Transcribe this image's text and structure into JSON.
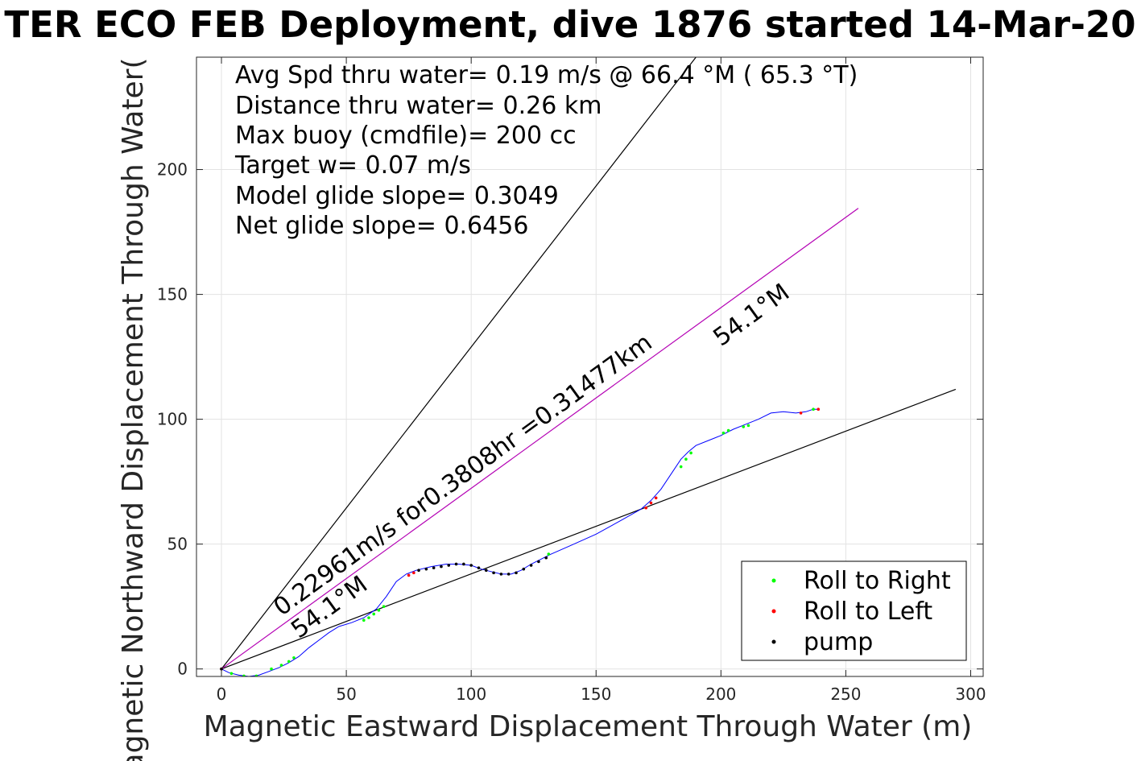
{
  "chart_data": {
    "type": "line",
    "title": "TER ECO FEB Deployment, dive 1876 started 14-Mar-20",
    "xlabel": "Magnetic Eastward Displacement Through Water (m)",
    "ylabel": "Magnetic Northward Displacement Through Water(",
    "xlim": [
      -10,
      305
    ],
    "ylim": [
      -3,
      245
    ],
    "xticks": [
      0,
      50,
      100,
      150,
      200,
      250,
      300
    ],
    "xtick_labels": [
      "0",
      "50",
      "100",
      "150",
      "200",
      "250",
      "300"
    ],
    "yticks": [
      0,
      50,
      100,
      150,
      200
    ],
    "ytick_labels": [
      "0",
      "50",
      "100",
      "150",
      "200"
    ],
    "grid": true,
    "info_lines": [
      "Avg Spd thru water=  0.19 m/s @  66.4 °M ( 65.3 °T)",
      "Distance thru water=  0.26 km",
      "Max buoy (cmdfile)= 200 cc",
      "Target w= 0.07 m/s",
      "Model glide slope= 0.3049",
      "Net glide slope= 0.6456"
    ],
    "reference_lines": [
      {
        "name": "",
        "color": "#000000",
        "x": [
          0,
          190
        ],
        "y": [
          0,
          245
        ]
      },
      {
        "name": "",
        "color": "#000000",
        "x": [
          0,
          294
        ],
        "y": [
          0,
          112
        ]
      },
      {
        "name": "",
        "color": "#b400b4",
        "x": [
          0,
          255
        ],
        "y": [
          0,
          184.5
        ]
      }
    ],
    "annotations": [
      {
        "text": "0.22961m/s for0.3808hr =0.31477km",
        "x": 24,
        "y": 21,
        "angle": 36
      },
      {
        "text": "54.1°M",
        "x": 31,
        "y": 12,
        "angle": 36
      },
      {
        "text": "54.1°M",
        "x": 200,
        "y": 129,
        "angle": 36
      }
    ],
    "track": {
      "color": "#0000ff",
      "x": [
        0,
        3,
        7,
        11,
        15,
        19,
        23,
        27,
        31,
        35,
        39,
        43,
        47,
        52,
        57,
        62,
        66,
        70,
        74,
        78,
        84,
        90,
        95,
        100,
        104,
        108,
        112,
        116,
        120,
        124,
        128,
        132,
        140,
        150,
        160,
        168,
        172,
        176,
        180,
        184,
        187,
        190,
        195,
        200,
        205,
        210,
        215,
        220,
        225,
        230,
        234,
        237,
        239
      ],
      "y": [
        0,
        -1.5,
        -2.5,
        -3,
        -2.5,
        -1,
        0.5,
        2.5,
        5,
        8.5,
        11.5,
        14.5,
        17,
        18.5,
        20.5,
        24,
        29,
        35,
        38,
        39.5,
        41,
        42,
        42,
        41.5,
        40,
        39,
        38,
        38,
        39.5,
        42,
        44,
        46,
        49.5,
        54,
        59.5,
        64,
        67.5,
        72,
        78,
        84,
        87,
        89.5,
        91.5,
        93.5,
        96,
        98,
        100,
        102.5,
        103,
        102.5,
        103,
        104,
        104
      ]
    },
    "series": [
      {
        "name": "Roll to Right",
        "color": "#00ff00",
        "x": [
          4,
          9,
          14,
          20,
          24,
          27,
          29,
          57,
          59,
          61,
          63,
          65,
          131,
          184,
          186,
          188,
          201,
          203,
          209,
          211,
          237
        ],
        "y": [
          -1.8,
          -2.8,
          -2.8,
          0,
          1.5,
          3,
          4.5,
          19.5,
          20.5,
          22,
          23.5,
          25,
          46,
          81,
          84,
          86.5,
          94.5,
          95.5,
          97,
          97.5,
          104
        ]
      },
      {
        "name": "Roll to Left",
        "color": "#ff0000",
        "x": [
          0,
          75,
          77,
          170,
          172,
          174,
          232,
          239
        ],
        "y": [
          0,
          37.5,
          38.5,
          64.5,
          66.5,
          68.5,
          102.5,
          104
        ]
      },
      {
        "name": "pump",
        "color": "#000000",
        "x": [
          0,
          79,
          82,
          85,
          88,
          91,
          94,
          97,
          100,
          103,
          106,
          109,
          112,
          115,
          118,
          121,
          124,
          127,
          130
        ],
        "y": [
          0,
          39.5,
          40,
          40.5,
          41,
          41.5,
          42,
          42,
          41.5,
          40.5,
          39.5,
          38.5,
          38,
          38,
          38.5,
          40,
          41.5,
          43,
          44.5
        ]
      }
    ],
    "legend": {
      "position": "bottom-right",
      "entries": [
        "Roll to Right",
        "Roll to Left",
        "pump"
      ]
    }
  }
}
